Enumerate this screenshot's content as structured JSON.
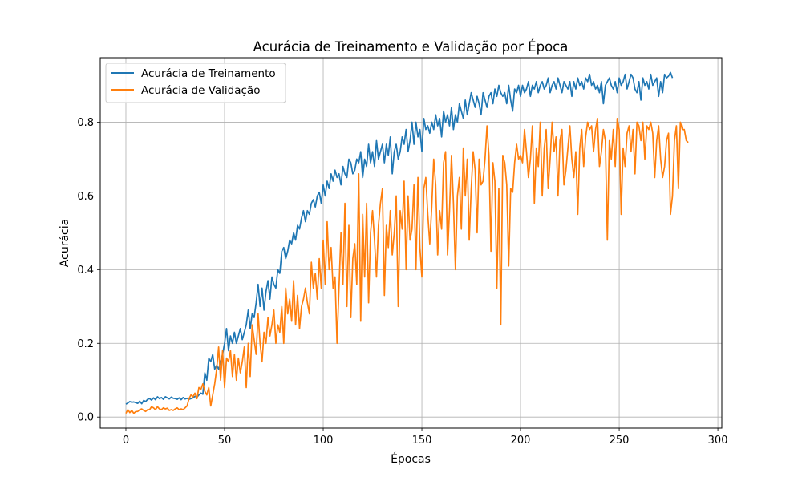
{
  "chart_data": {
    "type": "line",
    "title": "Acurácia de Treinamento e Validação por Época",
    "xlabel": "Épocas",
    "ylabel": "Acurácia",
    "xlim": [
      -13,
      302
    ],
    "ylim": [
      -0.03,
      0.975
    ],
    "xticks": [
      0,
      50,
      100,
      150,
      200,
      250,
      300
    ],
    "yticks": [
      0.0,
      0.2,
      0.4,
      0.6,
      0.8
    ],
    "ytick_labels": [
      "0.0",
      "0.2",
      "0.4",
      "0.6",
      "0.8"
    ],
    "grid": true,
    "legend_position": "top-left",
    "series": [
      {
        "name": "Acurácia de Treinamento",
        "color": "#1f77b4",
        "x_start": 0,
        "values": [
          0.035,
          0.038,
          0.042,
          0.04,
          0.041,
          0.039,
          0.037,
          0.043,
          0.036,
          0.045,
          0.042,
          0.048,
          0.05,
          0.046,
          0.052,
          0.047,
          0.055,
          0.05,
          0.053,
          0.048,
          0.055,
          0.052,
          0.049,
          0.054,
          0.051,
          0.05,
          0.048,
          0.052,
          0.047,
          0.053,
          0.049,
          0.051,
          0.048,
          0.05,
          0.052,
          0.056,
          0.054,
          0.06,
          0.065,
          0.062,
          0.12,
          0.1,
          0.16,
          0.15,
          0.17,
          0.13,
          0.14,
          0.13,
          0.15,
          0.17,
          0.2,
          0.24,
          0.18,
          0.22,
          0.2,
          0.23,
          0.2,
          0.22,
          0.24,
          0.21,
          0.23,
          0.25,
          0.29,
          0.24,
          0.28,
          0.27,
          0.31,
          0.36,
          0.3,
          0.35,
          0.29,
          0.34,
          0.37,
          0.32,
          0.38,
          0.36,
          0.35,
          0.4,
          0.39,
          0.45,
          0.46,
          0.43,
          0.45,
          0.48,
          0.47,
          0.5,
          0.48,
          0.52,
          0.51,
          0.54,
          0.56,
          0.53,
          0.56,
          0.55,
          0.58,
          0.59,
          0.57,
          0.6,
          0.61,
          0.58,
          0.63,
          0.6,
          0.64,
          0.62,
          0.66,
          0.64,
          0.67,
          0.65,
          0.66,
          0.63,
          0.68,
          0.66,
          0.65,
          0.7,
          0.69,
          0.66,
          0.67,
          0.7,
          0.69,
          0.72,
          0.65,
          0.7,
          0.68,
          0.74,
          0.69,
          0.72,
          0.68,
          0.75,
          0.7,
          0.72,
          0.74,
          0.69,
          0.74,
          0.71,
          0.76,
          0.66,
          0.72,
          0.74,
          0.7,
          0.72,
          0.76,
          0.74,
          0.78,
          0.72,
          0.75,
          0.8,
          0.74,
          0.8,
          0.76,
          0.78,
          0.72,
          0.81,
          0.78,
          0.79,
          0.77,
          0.8,
          0.78,
          0.82,
          0.79,
          0.81,
          0.76,
          0.83,
          0.8,
          0.82,
          0.79,
          0.84,
          0.78,
          0.82,
          0.8,
          0.85,
          0.83,
          0.81,
          0.86,
          0.82,
          0.85,
          0.88,
          0.86,
          0.84,
          0.87,
          0.85,
          0.82,
          0.88,
          0.86,
          0.84,
          0.87,
          0.88,
          0.85,
          0.89,
          0.87,
          0.9,
          0.88,
          0.87,
          0.88,
          0.85,
          0.9,
          0.86,
          0.83,
          0.89,
          0.88,
          0.9,
          0.87,
          0.9,
          0.88,
          0.89,
          0.91,
          0.87,
          0.9,
          0.89,
          0.91,
          0.88,
          0.9,
          0.91,
          0.89,
          0.9,
          0.92,
          0.88,
          0.9,
          0.91,
          0.89,
          0.92,
          0.9,
          0.88,
          0.91,
          0.9,
          0.89,
          0.91,
          0.87,
          0.91,
          0.89,
          0.92,
          0.9,
          0.91,
          0.89,
          0.92,
          0.91,
          0.93,
          0.9,
          0.91,
          0.89,
          0.9,
          0.88,
          0.91,
          0.85,
          0.9,
          0.91,
          0.92,
          0.9,
          0.89,
          0.91,
          0.88,
          0.92,
          0.9,
          0.91,
          0.93,
          0.89,
          0.91,
          0.93,
          0.92,
          0.89,
          0.88,
          0.91,
          0.86,
          0.92,
          0.9,
          0.91,
          0.89,
          0.93,
          0.9,
          0.91,
          0.92,
          0.87,
          0.91,
          0.88,
          0.93,
          0.92,
          0.925,
          0.935,
          0.92
        ]
      },
      {
        "name": "Acurácia de Validação",
        "color": "#ff7f0e",
        "x_start": 0,
        "values": [
          0.01,
          0.02,
          0.012,
          0.018,
          0.01,
          0.015,
          0.015,
          0.02,
          0.022,
          0.018,
          0.015,
          0.02,
          0.02,
          0.028,
          0.025,
          0.02,
          0.028,
          0.022,
          0.02,
          0.025,
          0.022,
          0.024,
          0.018,
          0.02,
          0.018,
          0.022,
          0.025,
          0.02,
          0.022,
          0.02,
          0.025,
          0.03,
          0.05,
          0.06,
          0.055,
          0.065,
          0.05,
          0.08,
          0.075,
          0.09,
          0.07,
          0.06,
          0.08,
          0.03,
          0.06,
          0.09,
          0.13,
          0.19,
          0.1,
          0.18,
          0.08,
          0.16,
          0.15,
          0.18,
          0.11,
          0.17,
          0.1,
          0.16,
          0.12,
          0.15,
          0.19,
          0.08,
          0.2,
          0.11,
          0.25,
          0.21,
          0.17,
          0.28,
          0.2,
          0.15,
          0.23,
          0.2,
          0.27,
          0.22,
          0.25,
          0.29,
          0.2,
          0.25,
          0.23,
          0.3,
          0.2,
          0.35,
          0.28,
          0.32,
          0.26,
          0.37,
          0.25,
          0.33,
          0.24,
          0.3,
          0.32,
          0.35,
          0.31,
          0.28,
          0.42,
          0.35,
          0.39,
          0.32,
          0.43,
          0.35,
          0.48,
          0.36,
          0.53,
          0.4,
          0.46,
          0.35,
          0.38,
          0.2,
          0.35,
          0.5,
          0.36,
          0.58,
          0.3,
          0.52,
          0.27,
          0.43,
          0.47,
          0.36,
          0.66,
          0.26,
          0.55,
          0.38,
          0.58,
          0.31,
          0.5,
          0.56,
          0.48,
          0.38,
          0.52,
          0.58,
          0.62,
          0.33,
          0.52,
          0.46,
          0.56,
          0.44,
          0.5,
          0.6,
          0.3,
          0.56,
          0.51,
          0.64,
          0.4,
          0.6,
          0.48,
          0.51,
          0.63,
          0.4,
          0.65,
          0.46,
          0.38,
          0.62,
          0.65,
          0.55,
          0.47,
          0.57,
          0.7,
          0.63,
          0.44,
          0.56,
          0.51,
          0.69,
          0.72,
          0.44,
          0.56,
          0.71,
          0.58,
          0.4,
          0.6,
          0.65,
          0.51,
          0.73,
          0.6,
          0.7,
          0.48,
          0.62,
          0.72,
          0.67,
          0.5,
          0.7,
          0.63,
          0.64,
          0.7,
          0.79,
          0.71,
          0.45,
          0.69,
          0.64,
          0.35,
          0.62,
          0.25,
          0.71,
          0.69,
          0.63,
          0.41,
          0.62,
          0.61,
          0.69,
          0.74,
          0.7,
          0.71,
          0.69,
          0.78,
          0.72,
          0.65,
          0.7,
          0.79,
          0.58,
          0.73,
          0.68,
          0.8,
          0.6,
          0.73,
          0.78,
          0.62,
          0.7,
          0.8,
          0.72,
          0.76,
          0.6,
          0.75,
          0.78,
          0.63,
          0.67,
          0.73,
          0.79,
          0.7,
          0.65,
          0.72,
          0.55,
          0.73,
          0.78,
          0.68,
          0.76,
          0.8,
          0.78,
          0.79,
          0.72,
          0.78,
          0.81,
          0.68,
          0.72,
          0.78,
          0.75,
          0.48,
          0.75,
          0.7,
          0.78,
          0.68,
          0.81,
          0.78,
          0.55,
          0.73,
          0.68,
          0.77,
          0.79,
          0.72,
          0.78,
          0.66,
          0.8,
          0.79,
          0.75,
          0.8,
          0.7,
          0.79,
          0.78,
          0.8,
          0.77,
          0.65,
          0.75,
          0.79,
          0.7,
          0.65,
          0.68,
          0.75,
          0.77,
          0.55,
          0.6,
          0.75,
          0.79,
          0.62,
          0.8,
          0.78,
          0.78,
          0.75,
          0.745
        ]
      }
    ]
  }
}
